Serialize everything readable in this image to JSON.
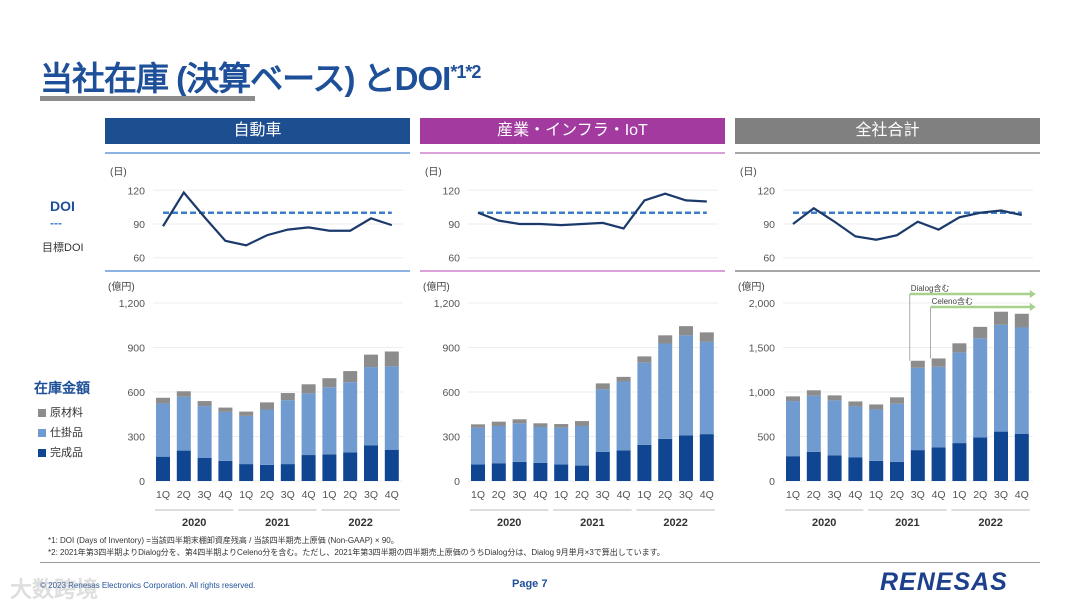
{
  "title": {
    "main": "当社在庫 (決算ベース) とDOI",
    "sup": "*1*2"
  },
  "legend": {
    "doi": "DOI",
    "doi_dash": "---",
    "target": "目標DOI",
    "inventory": "在庫金額",
    "raw": "原材料",
    "wip": "仕掛品",
    "finished": "完成品"
  },
  "colors": {
    "auto": "#1d4e8f",
    "industrial": "#a23aa0",
    "total": "#808080",
    "finished": "#0f4591",
    "wip": "#6f9bd1",
    "raw": "#8c8c8c",
    "doi_line": "#1b3a6b",
    "target_line": "#3d7cc9",
    "annotation": "#a9d18e"
  },
  "footnotes": [
    "*1: DOI (Days of Inventory) =当該四半期末棚卸資産残高 / 当該四半期売上原価 (Non-GAAP) × 90。",
    "*2: 2021年第3四半期よりDialog分を、第4四半期よりCeleno分を含む。ただし、2021年第3四半期の四半期売上原価のうちDialog分は、Dialog 9月単月×3で算出しています。"
  ],
  "footer": {
    "copyright": "© 2023 Renesas Electronics Corporation. All rights reserved.",
    "page": "Page 7",
    "logo": "RENESAS",
    "watermark": "大数跨境"
  },
  "chart_data": [
    {
      "type": "bar",
      "title": "自動車",
      "stacked": true,
      "categories": [
        "1Q",
        "2Q",
        "3Q",
        "4Q",
        "1Q",
        "2Q",
        "3Q",
        "4Q",
        "1Q",
        "2Q",
        "3Q",
        "4Q"
      ],
      "years": [
        "2020",
        "2021",
        "2022"
      ],
      "doi": {
        "unit": "(日)",
        "yticks": [
          "120",
          "90",
          "60"
        ],
        "ylim": [
          60,
          120
        ],
        "target": 100,
        "values": [
          88,
          118,
          96,
          75,
          71,
          80,
          85,
          87,
          84,
          84,
          95,
          89
        ]
      },
      "inventory": {
        "unit": "(億円)",
        "yticks": [
          "1,200",
          "900",
          "600",
          "300",
          "0"
        ],
        "ylim": [
          0,
          1200
        ],
        "series": [
          {
            "name": "完成品",
            "values": [
              164,
              205,
              155,
              136,
              114,
              109,
              114,
              175,
              180,
              193,
              241,
              211
            ]
          },
          {
            "name": "仕掛品",
            "values": [
              359,
              363,
              350,
              330,
              325,
              373,
              431,
              416,
              452,
              473,
              527,
              562
            ]
          },
          {
            "name": "原材料",
            "values": [
              38,
              37,
              34,
              29,
              29,
              48,
              48,
              61,
              61,
              75,
              84,
              100
            ]
          }
        ]
      }
    },
    {
      "type": "bar",
      "title": "産業・インフラ・IoT",
      "stacked": true,
      "categories": [
        "1Q",
        "2Q",
        "3Q",
        "4Q",
        "1Q",
        "2Q",
        "3Q",
        "4Q",
        "1Q",
        "2Q",
        "3Q",
        "4Q"
      ],
      "years": [
        "2020",
        "2021",
        "2022"
      ],
      "doi": {
        "unit": "(日)",
        "yticks": [
          "120",
          "90",
          "60"
        ],
        "ylim": [
          60,
          120
        ],
        "target": 100,
        "values": [
          100,
          93,
          90,
          90,
          89,
          90,
          91,
          86,
          111,
          117,
          111,
          110
        ]
      },
      "inventory": {
        "unit": "(億円)",
        "yticks": [
          "1,200",
          "900",
          "600",
          "300",
          "0"
        ],
        "ylim": [
          0,
          1200
        ],
        "series": [
          {
            "name": "完成品",
            "values": [
              111,
              118,
              129,
              122,
              111,
              104,
              196,
              207,
              244,
              284,
              307,
              316
            ]
          },
          {
            "name": "仕掛品",
            "values": [
              249,
              253,
              260,
              242,
              249,
              267,
              422,
              464,
              554,
              643,
              675,
              622
            ]
          },
          {
            "name": "原材料",
            "values": [
              22,
              29,
              27,
              25,
              24,
              33,
              40,
              31,
              42,
              55,
              62,
              64
            ]
          }
        ]
      }
    },
    {
      "type": "bar",
      "title": "全社合計",
      "stacked": true,
      "categories": [
        "1Q",
        "2Q",
        "3Q",
        "4Q",
        "1Q",
        "2Q",
        "3Q",
        "4Q",
        "1Q",
        "2Q",
        "3Q",
        "4Q"
      ],
      "years": [
        "2020",
        "2021",
        "2022"
      ],
      "doi": {
        "unit": "(日)",
        "yticks": [
          "120",
          "90",
          "60"
        ],
        "ylim": [
          60,
          120
        ],
        "target": 100,
        "values": [
          90,
          104,
          92,
          79,
          76,
          80,
          92,
          85,
          96,
          100,
          102,
          98
        ]
      },
      "inventory": {
        "unit": "(億円)",
        "yticks": [
          "2,000",
          "1,500",
          "1,000",
          "500",
          "0"
        ],
        "ylim": [
          0,
          2000
        ],
        "series": [
          {
            "name": "完成品",
            "values": [
              279,
              328,
              287,
              264,
              226,
              215,
              347,
              377,
              426,
              491,
              555,
              528
            ]
          },
          {
            "name": "仕掛品",
            "values": [
              619,
              630,
              619,
              574,
              578,
              653,
              925,
              906,
              1019,
              1113,
              1200,
              1197
            ]
          },
          {
            "name": "原材料",
            "values": [
              53,
              61,
              56,
              56,
              56,
              72,
              79,
              94,
              102,
              128,
              147,
              154
            ]
          }
        ]
      },
      "annotations": [
        {
          "label": "Dialog含む",
          "from_index": 6
        },
        {
          "label": "Celeno含む",
          "from_index": 7
        }
      ]
    }
  ]
}
